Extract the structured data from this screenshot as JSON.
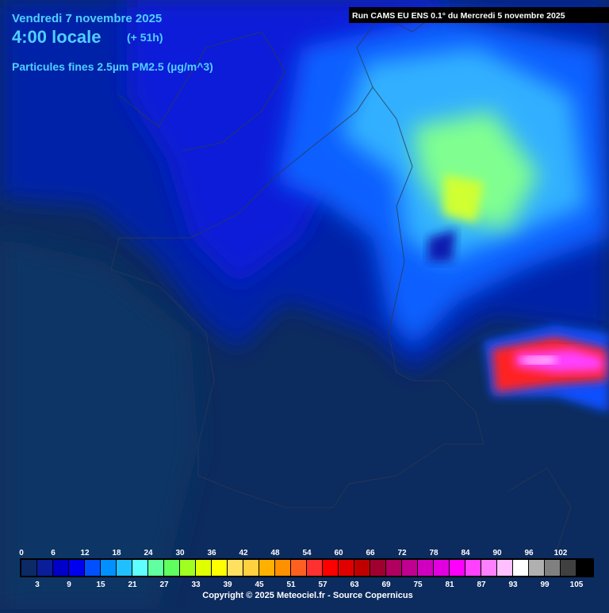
{
  "header": {
    "date": "Vendredi 7 novembre 2025",
    "time": "4:00 locale",
    "lead": "(+ 51h)",
    "parameter": "Particules fines 2.5µm PM2.5 (µg/m^3)",
    "run": "Run CAMS EU ENS 0.1° du Mercredi 5 novembre 2025"
  },
  "legend": {
    "ticks": [
      0,
      3,
      6,
      9,
      12,
      15,
      18,
      21,
      24,
      27,
      30,
      33,
      36,
      39,
      42,
      45,
      48,
      51,
      54,
      57,
      60,
      63,
      66,
      69,
      72,
      75,
      78,
      81,
      84,
      87,
      90,
      93,
      96,
      99,
      102,
      105
    ],
    "colors": [
      "#0c2a66",
      "#0a1e9a",
      "#0000c8",
      "#0000f0",
      "#0050ff",
      "#0090ff",
      "#20c0ff",
      "#60ffff",
      "#60ffa0",
      "#60ff60",
      "#a0ff20",
      "#e0ff00",
      "#ffff00",
      "#ffe060",
      "#ffd040",
      "#ffb000",
      "#ff9000",
      "#ff6020",
      "#ff3030",
      "#ff0000",
      "#e00000",
      "#c00000",
      "#a00030",
      "#b00060",
      "#c00090",
      "#d000c0",
      "#e000e0",
      "#ff00ff",
      "#ff40ff",
      "#ff80ff",
      "#ffc0ff",
      "#ffffff",
      "#b0b0b0",
      "#808080",
      "#404040",
      "#000000"
    ]
  },
  "footer": {
    "copyright": "Copyright © 2025 Meteociel.fr - Source Copernicus"
  }
}
